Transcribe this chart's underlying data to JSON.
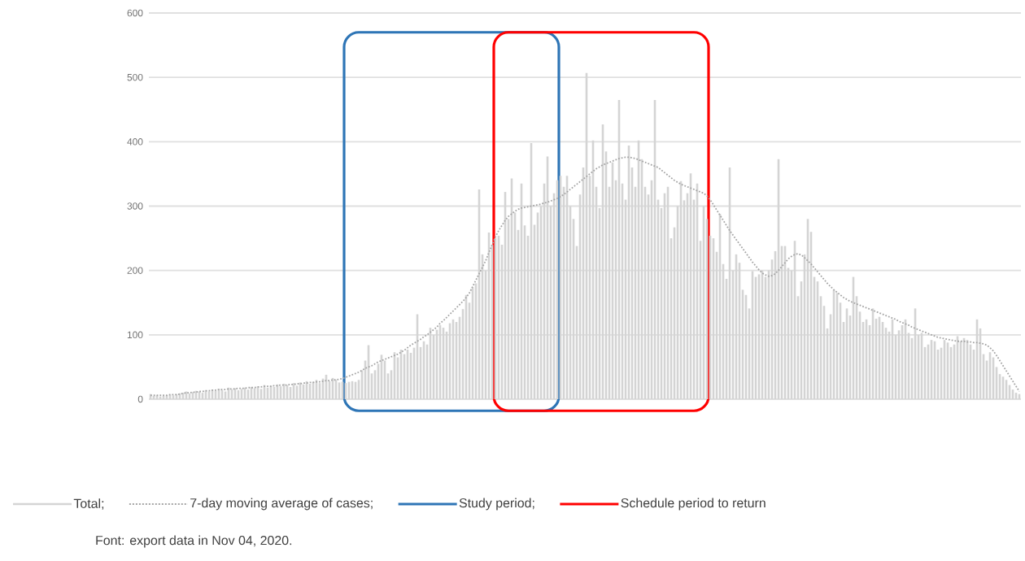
{
  "chart_data": {
    "type": "bar",
    "categories": [
      null,
      null,
      null,
      null,
      null,
      null,
      null,
      null,
      null,
      null,
      null,
      null,
      null,
      null,
      null,
      null,
      null,
      null,
      null,
      null,
      null,
      null,
      null,
      null,
      null,
      null,
      null,
      null,
      null,
      null,
      null,
      null,
      null,
      null,
      null,
      null,
      null,
      null,
      null,
      null,
      null,
      null,
      null,
      null,
      null,
      null,
      null,
      null,
      null,
      null,
      null,
      null,
      null,
      null,
      null,
      null,
      null,
      null,
      null,
      null,
      null,
      null,
      null,
      null,
      null,
      null,
      null,
      null,
      null,
      null,
      null,
      null,
      null,
      null,
      null,
      null,
      null,
      null,
      null,
      null,
      null,
      null,
      null,
      null,
      null,
      null,
      null,
      null,
      null,
      null,
      null,
      null,
      null,
      null,
      null,
      null,
      null,
      null,
      null,
      null,
      null,
      null,
      null,
      null,
      null,
      null,
      null,
      null,
      null,
      null,
      null,
      null,
      null,
      null,
      null,
      null,
      null,
      null,
      null,
      null,
      null,
      null,
      null,
      null,
      null,
      null,
      null,
      null,
      null,
      null,
      null,
      null,
      null,
      null,
      null,
      null,
      null,
      null,
      null,
      null,
      null,
      null,
      null,
      null,
      null,
      null,
      null,
      null,
      null,
      null,
      null,
      null,
      null,
      null,
      null,
      null,
      null,
      null,
      null,
      null,
      null,
      null,
      null,
      null,
      null,
      null,
      null,
      null,
      null,
      null,
      null,
      null,
      null,
      null,
      null,
      null,
      null,
      null,
      null,
      null,
      null,
      null,
      null,
      null,
      null,
      null,
      null,
      null,
      null,
      null,
      null,
      null,
      null,
      null,
      null,
      null,
      null,
      null,
      null,
      null,
      null,
      null,
      null,
      null,
      null,
      null,
      null,
      null,
      null,
      null,
      null,
      null,
      null,
      null,
      null,
      null,
      null,
      null,
      null,
      null,
      null,
      null,
      null,
      null,
      null,
      null,
      null,
      null,
      null,
      null,
      null,
      null,
      null,
      null,
      null,
      null,
      null,
      null,
      null,
      null,
      null,
      null,
      null,
      null,
      null,
      null,
      null,
      null,
      null,
      null,
      null,
      null,
      null,
      null,
      null,
      null,
      null,
      null,
      null,
      null,
      null,
      null,
      null,
      null,
      null,
      null,
      null,
      null
    ],
    "series": [
      {
        "name": "Total;",
        "color": "#d4d4d4",
        "values": [
          8,
          5,
          6,
          4,
          5,
          6,
          7,
          6,
          8,
          9,
          10,
          12,
          9,
          11,
          13,
          12,
          10,
          14,
          12,
          15,
          13,
          16,
          14,
          12,
          18,
          15,
          17,
          14,
          16,
          18,
          15,
          19,
          17,
          20,
          16,
          22,
          18,
          21,
          19,
          23,
          20,
          24,
          22,
          19,
          25,
          21,
          26,
          23,
          28,
          24,
          27,
          30,
          25,
          32,
          38,
          28,
          33,
          30,
          26,
          27,
          25,
          27,
          28,
          27,
          30,
          45,
          60,
          84,
          40,
          45,
          55,
          69,
          60,
          40,
          45,
          73,
          65,
          77,
          70,
          77,
          72,
          80,
          132,
          81,
          90,
          85,
          111,
          100,
          108,
          115,
          111,
          105,
          118,
          124,
          120,
          128,
          140,
          162,
          150,
          174,
          180,
          326,
          225,
          200,
          259,
          240,
          250,
          254,
          240,
          322,
          280,
          343,
          290,
          263,
          335,
          270,
          254,
          398,
          271,
          290,
          300,
          335,
          377,
          300,
          320,
          340,
          347,
          330,
          347,
          300,
          280,
          238,
          318,
          360,
          507,
          347,
          402,
          330,
          297,
          427,
          385,
          330,
          368,
          340,
          465,
          335,
          310,
          394,
          360,
          330,
          402,
          373,
          330,
          318,
          340,
          465,
          310,
          297,
          320,
          330,
          250,
          267,
          300,
          339,
          309,
          320,
          351,
          310,
          335,
          246,
          300,
          280,
          254,
          250,
          229,
          288,
          210,
          187,
          360,
          200,
          225,
          212,
          170,
          162,
          141,
          199,
          190,
          194,
          200,
          190,
          200,
          217,
          230,
          373,
          238,
          238,
          204,
          200,
          246,
          160,
          183,
          225,
          280,
          260,
          190,
          183,
          160,
          145,
          110,
          132,
          170,
          165,
          150,
          120,
          141,
          130,
          190,
          160,
          136,
          120,
          124,
          115,
          141,
          125,
          128,
          120,
          111,
          105,
          124,
          100,
          107,
          115,
          124,
          103,
          95,
          141,
          100,
          103,
          81,
          85,
          92,
          90,
          77,
          80,
          92,
          88,
          81,
          85,
          98,
          90,
          95,
          92,
          85,
          77,
          124,
          110,
          70,
          60,
          73,
          65,
          50,
          39,
          35,
          30,
          22,
          15,
          10,
          8
        ]
      },
      {
        "name": "7-day moving average of cases;",
        "type": "line",
        "color": "#a6a6a6",
        "line_style": "dotted",
        "values": [
          6,
          6,
          6,
          6,
          6,
          6,
          7,
          7,
          7,
          8,
          9,
          10,
          10,
          11,
          11,
          12,
          12,
          13,
          13,
          14,
          14,
          15,
          15,
          15,
          16,
          16,
          16,
          17,
          17,
          17,
          18,
          18,
          18,
          19,
          19,
          20,
          20,
          20,
          21,
          21,
          22,
          22,
          22,
          23,
          23,
          24,
          24,
          25,
          25,
          26,
          26,
          27,
          27,
          28,
          29,
          29,
          30,
          30,
          31,
          32,
          34,
          36,
          38,
          40,
          42,
          45,
          48,
          50,
          52,
          55,
          58,
          60,
          62,
          64,
          66,
          68,
          70,
          73,
          76,
          80,
          84,
          87,
          90,
          93,
          97,
          100,
          104,
          108,
          112,
          118,
          122,
          127,
          132,
          137,
          142,
          147,
          152,
          158,
          165,
          175,
          185,
          195,
          205,
          215,
          228,
          240,
          252,
          262,
          270,
          278,
          284,
          288,
          292,
          295,
          297,
          298,
          299,
          300,
          301,
          302,
          303,
          305,
          306,
          308,
          310,
          312,
          315,
          318,
          322,
          326,
          330,
          334,
          338,
          342,
          346,
          350,
          354,
          358,
          361,
          364,
          366,
          368,
          370,
          372,
          374,
          375,
          376,
          376,
          375,
          374,
          372,
          370,
          368,
          366,
          364,
          362,
          360,
          356,
          352,
          348,
          344,
          340,
          337,
          334,
          332,
          330,
          328,
          326,
          324,
          322,
          320,
          316,
          310,
          302,
          294,
          286,
          278,
          270,
          262,
          255,
          248,
          241,
          234,
          227,
          220,
          213,
          207,
          201,
          196,
          193,
          191,
          192,
          195,
          200,
          206,
          212,
          218,
          222,
          225,
          226,
          224,
          220,
          215,
          210,
          204,
          198,
          192,
          186,
          180,
          175,
          170,
          166,
          162,
          158,
          155,
          152,
          150,
          148,
          146,
          144,
          142,
          140,
          138,
          136,
          134,
          132,
          130,
          128,
          126,
          124,
          121,
          119,
          117,
          115,
          112,
          110,
          108,
          106,
          104,
          102,
          100,
          98,
          96,
          95,
          94,
          93,
          92,
          91,
          90,
          90,
          90,
          89,
          89,
          88,
          88,
          87,
          86,
          84,
          80,
          75,
          68,
          60,
          52,
          44,
          36,
          28,
          20,
          12
        ]
      }
    ],
    "ylim": [
      0,
      600
    ],
    "yticks": [
      0,
      100,
      200,
      300,
      400,
      500,
      600
    ],
    "grid": "y",
    "legend": "bottom",
    "tick_labels": "y",
    "annotations": [
      "Study period;",
      "Schedule period to return",
      "Font: export data in Nov 04, 2020."
    ]
  }
}
